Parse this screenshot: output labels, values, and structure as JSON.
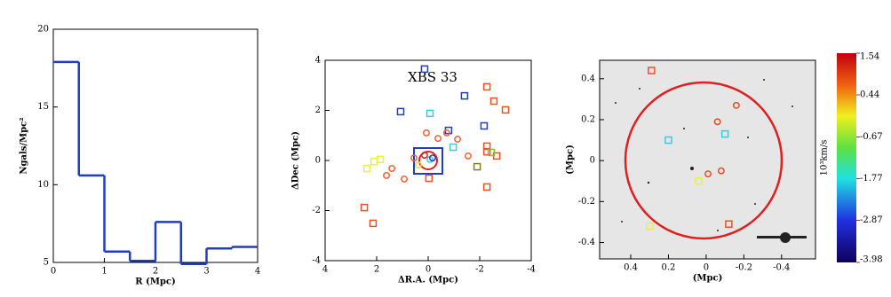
{
  "chart_data": [
    {
      "type": "histogram",
      "xlabel": "R (Mpc)",
      "ylabel": "Ngals/Mpc²",
      "bins": [
        0,
        0.5,
        1,
        1.5,
        2,
        2.5,
        3,
        3.5,
        4
      ],
      "values": [
        17.9,
        10.6,
        5.7,
        5.1,
        7.6,
        4.9,
        5.9,
        6.0
      ],
      "color": "#1f3fbf",
      "xlim": [
        0,
        4
      ],
      "ylim": [
        5,
        20
      ],
      "xticks": [
        0,
        1,
        2,
        3,
        4
      ],
      "yticks": [
        5,
        10,
        15,
        20
      ]
    },
    {
      "type": "scatter",
      "title": "XBS 33",
      "xlabel": "ΔR.A. (Mpc)",
      "ylabel": "ΔDec (Mpc)",
      "xlim": [
        4,
        -4
      ],
      "ylim": [
        -4,
        4
      ],
      "xticks": [
        4,
        2,
        0,
        -2,
        -4
      ],
      "yticks": [
        -4,
        -2,
        0,
        2,
        4
      ],
      "series": [
        {
          "color": "#2040c0",
          "marker": "square",
          "x": [
            0.14,
            -1.41,
            1.07,
            -2.17,
            -0.79
          ],
          "y": [
            3.65,
            2.58,
            1.95,
            1.38,
            1.2
          ]
        },
        {
          "color": "#30d0e0",
          "marker": "square",
          "x": [
            -0.07,
            -0.97
          ],
          "y": [
            1.88,
            0.53
          ]
        },
        {
          "color": "#f05020",
          "marker": "square",
          "x": [
            -2.28,
            -3.0,
            -2.55,
            -2.28,
            -2.28,
            -2.66,
            -0.03,
            -2.28,
            2.48,
            2.14
          ],
          "y": [
            2.94,
            2.02,
            2.37,
            0.57,
            0.35,
            0.18,
            -0.71,
            -1.06,
            -1.88,
            -2.51
          ]
        },
        {
          "color": "#80c020",
          "marker": "square",
          "x": [
            -2.45
          ],
          "y": [
            0.32
          ]
        },
        {
          "color": "#808020",
          "marker": "square",
          "x": [
            -1.9
          ],
          "y": [
            -0.25
          ]
        },
        {
          "color": "#e8f040",
          "marker": "square",
          "x": [
            2.38,
            2.1,
            1.86
          ],
          "y": [
            -0.32,
            -0.04,
            0.04
          ]
        },
        {
          "color": "#f06030",
          "marker": "circle",
          "x": [
            0.07,
            -0.38,
            -0.72,
            -1.14,
            -1.55,
            1.41,
            0.93,
            1.62,
            0.55
          ],
          "y": [
            1.1,
            0.88,
            1.1,
            0.85,
            0.18,
            -0.32,
            -0.74,
            -0.6,
            0.1
          ]
        },
        {
          "color": "#e0e030",
          "marker": "circle",
          "x": [
            0.38
          ],
          "y": [
            -0.18
          ]
        },
        {
          "color": "#e02020",
          "marker": "circle",
          "x": [
            0.14
          ],
          "y": [
            0.21
          ]
        },
        {
          "color": "#30d0e0",
          "marker": "circle",
          "x": [
            -0.07
          ],
          "y": [
            0.04
          ]
        },
        {
          "color": "#2040c0",
          "marker": "circle",
          "x": [
            -0.17
          ],
          "y": [
            0.1
          ]
        }
      ]
    },
    {
      "type": "image-scatter",
      "xlabel": "(Mpc)",
      "ylabel": "(Mpc)",
      "xlim": [
        0.565,
        -0.58
      ],
      "ylim": [
        -0.48,
        0.49
      ],
      "xticks": [
        0.4,
        0.2,
        0.0,
        -0.2,
        -0.4
      ],
      "yticks": [
        -0.4,
        -0.2,
        0.0,
        0.2,
        0.4
      ],
      "series": [
        {
          "color": "#f05020",
          "marker": "square",
          "x": [
            0.29,
            -0.12
          ],
          "y": [
            0.44,
            -0.31
          ]
        },
        {
          "color": "#30d0e0",
          "marker": "square",
          "x": [
            0.2,
            -0.1
          ],
          "y": [
            0.1,
            0.13
          ]
        },
        {
          "color": "#e8f040",
          "marker": "square",
          "x": [
            0.04,
            0.3
          ],
          "y": [
            -0.1,
            -0.32
          ]
        },
        {
          "color": "#e05020",
          "marker": "circle",
          "x": [
            -0.06,
            -0.16,
            -0.01,
            -0.08
          ],
          "y": [
            0.19,
            0.27,
            -0.065,
            -0.05
          ]
        }
      ],
      "colorbar": {
        "label": "10³km/s",
        "lim": [
          -3.98,
          1.54
        ],
        "ticks": [
          1.54,
          0.44,
          -0.67,
          -1.77,
          -2.87,
          -3.98
        ]
      }
    }
  ]
}
